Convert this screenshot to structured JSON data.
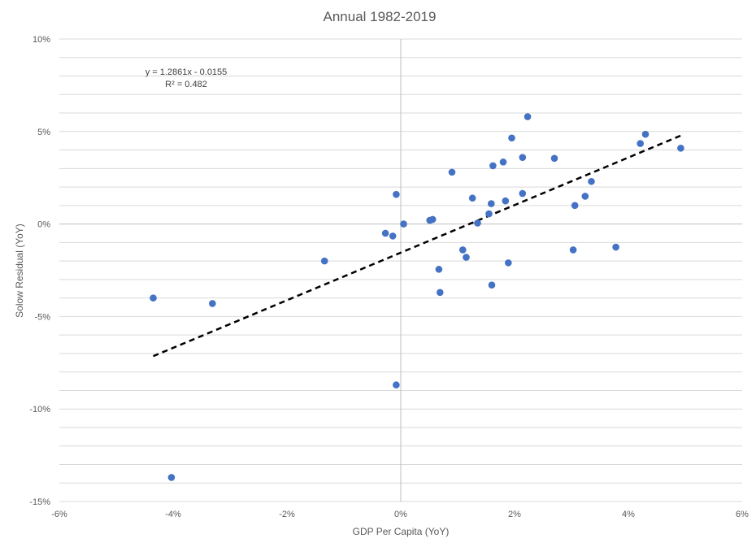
{
  "chart_data": {
    "type": "scatter",
    "title": "Annual 1982-2019",
    "xlabel": "GDP Per Capita (YoY)",
    "ylabel": "Solow Residual (YoY)",
    "xlim": [
      -0.06,
      0.06
    ],
    "ylim": [
      -0.15,
      0.1
    ],
    "x_ticks": [
      -0.06,
      -0.04,
      -0.02,
      0,
      0.02,
      0.04,
      0.06
    ],
    "x_tick_labels": [
      "-6%",
      "-4%",
      "-2%",
      "0%",
      "2%",
      "4%",
      "6%"
    ],
    "y_ticks": [
      0.1,
      0.05,
      0,
      -0.05,
      -0.1,
      -0.15
    ],
    "y_tick_labels": [
      "10%",
      "5%",
      "0%",
      "-5%",
      "-10%",
      "-15%"
    ],
    "grid": true,
    "legend": "none",
    "point_color": "#4472C4",
    "trendline_color": "#000000",
    "trendline": {
      "slope": 1.2861,
      "intercept": -0.0155,
      "x_range": [
        -0.0435,
        0.0492
      ],
      "equation_text": "y = 1.2861x - 0.0155",
      "r2_text": "R² = 0.482"
    },
    "points": [
      {
        "x": -0.0435,
        "y": -0.04
      },
      {
        "x": -0.0403,
        "y": -0.137
      },
      {
        "x": -0.0331,
        "y": -0.043
      },
      {
        "x": -0.0134,
        "y": -0.02
      },
      {
        "x": -0.0027,
        "y": -0.005
      },
      {
        "x": -0.0014,
        "y": -0.0065
      },
      {
        "x": -0.0008,
        "y": 0.016
      },
      {
        "x": -0.0008,
        "y": -0.087
      },
      {
        "x": 0.0005,
        "y": 0.0
      },
      {
        "x": 0.0051,
        "y": 0.002
      },
      {
        "x": 0.0056,
        "y": 0.0025
      },
      {
        "x": 0.0067,
        "y": -0.0245
      },
      {
        "x": 0.0069,
        "y": -0.037
      },
      {
        "x": 0.009,
        "y": 0.028
      },
      {
        "x": 0.0109,
        "y": -0.014
      },
      {
        "x": 0.0115,
        "y": -0.018
      },
      {
        "x": 0.0126,
        "y": 0.014
      },
      {
        "x": 0.0135,
        "y": 0.0005
      },
      {
        "x": 0.0155,
        "y": 0.0055
      },
      {
        "x": 0.0159,
        "y": 0.011
      },
      {
        "x": 0.016,
        "y": -0.033
      },
      {
        "x": 0.0162,
        "y": 0.0315
      },
      {
        "x": 0.018,
        "y": 0.0335
      },
      {
        "x": 0.0184,
        "y": 0.0125
      },
      {
        "x": 0.0189,
        "y": -0.021
      },
      {
        "x": 0.0195,
        "y": 0.0465
      },
      {
        "x": 0.0214,
        "y": 0.036
      },
      {
        "x": 0.0214,
        "y": 0.0165
      },
      {
        "x": 0.0223,
        "y": 0.058
      },
      {
        "x": 0.027,
        "y": 0.0355
      },
      {
        "x": 0.0303,
        "y": -0.014
      },
      {
        "x": 0.0306,
        "y": 0.01
      },
      {
        "x": 0.0324,
        "y": 0.015
      },
      {
        "x": 0.0335,
        "y": 0.023
      },
      {
        "x": 0.0378,
        "y": -0.0125
      },
      {
        "x": 0.0421,
        "y": 0.0435
      },
      {
        "x": 0.043,
        "y": 0.0485
      },
      {
        "x": 0.0492,
        "y": 0.041
      }
    ]
  }
}
